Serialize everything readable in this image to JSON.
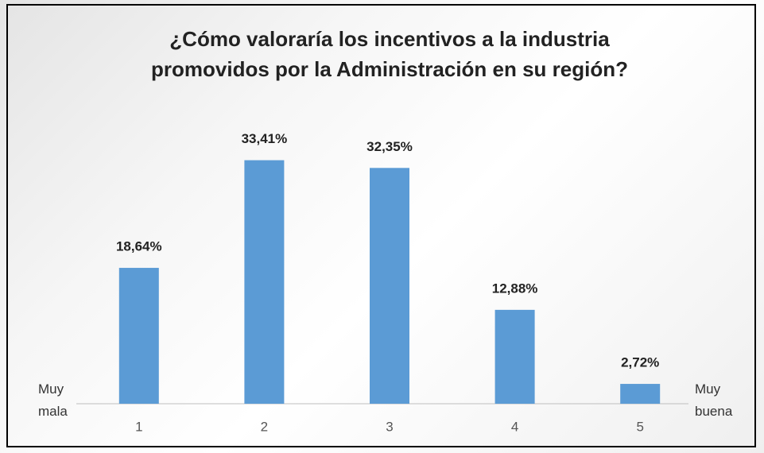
{
  "chart_data": {
    "type": "bar",
    "title": "¿Cómo valoraría los incentivos a la industria promovidos por la Administración en su región?",
    "categories": [
      "1",
      "2",
      "3",
      "4",
      "5"
    ],
    "values": [
      18.64,
      33.41,
      32.35,
      12.88,
      2.72
    ],
    "value_labels": [
      "18,64%",
      "33,41%",
      "32,35%",
      "12,88%",
      "2,72%"
    ],
    "color": "#5b9bd5",
    "ylim": [
      0,
      35
    ],
    "annotations": {
      "left": "Muy mala",
      "right": "Muy buena"
    }
  }
}
